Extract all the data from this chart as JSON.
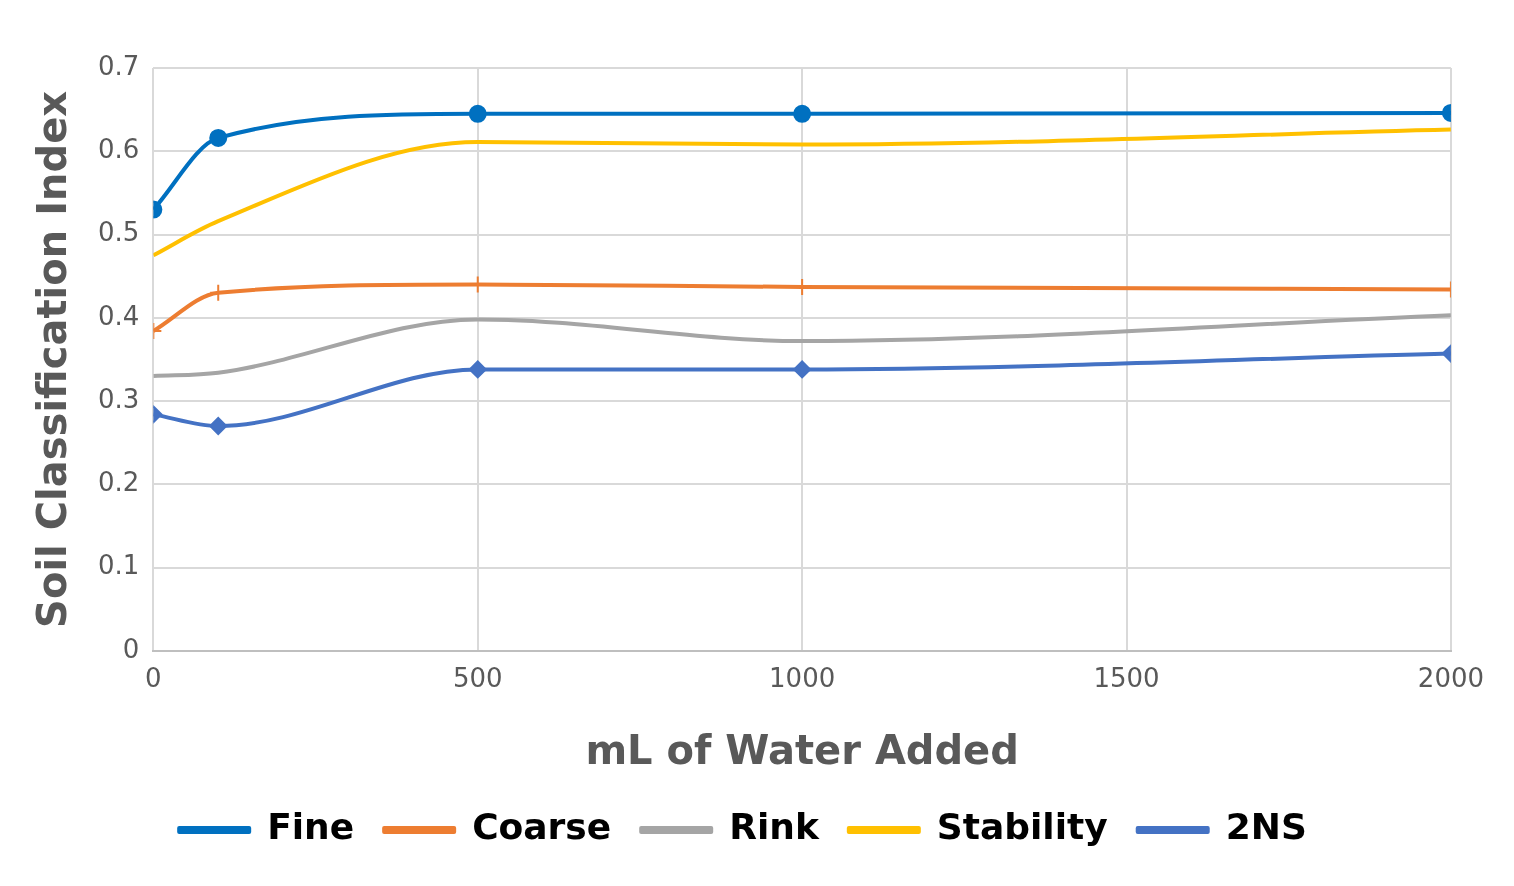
{
  "chart_data": {
    "type": "line",
    "xlabel": "mL of Water Added",
    "ylabel": "Soil Classification Index",
    "x": [
      0,
      100,
      500,
      1000,
      2000
    ],
    "xlim": [
      0,
      2000
    ],
    "xticks": [
      0,
      500,
      1000,
      1500,
      2000
    ],
    "ylim": [
      0,
      0.7
    ],
    "yticks": [
      0,
      0.1,
      0.2,
      0.3,
      0.4,
      0.5,
      0.6,
      0.7
    ],
    "grid": true,
    "legend": "bottom",
    "series": [
      {
        "name": "Fine",
        "color": "#0070c0",
        "marker": "circle",
        "values": [
          0.53,
          0.616,
          0.645,
          0.645,
          0.646
        ]
      },
      {
        "name": "Coarse",
        "color": "#ed7d31",
        "marker": "cross",
        "values": [
          0.384,
          0.43,
          0.44,
          0.437,
          0.434
        ]
      },
      {
        "name": "Rink",
        "color": "#a5a5a5",
        "marker": "none",
        "values": [
          0.33,
          0.334,
          0.398,
          0.372,
          0.403
        ]
      },
      {
        "name": "Stability",
        "color": "#ffc000",
        "marker": "none",
        "values": [
          0.475,
          0.516,
          0.611,
          0.608,
          0.626
        ]
      },
      {
        "name": "2NS",
        "color": "#4472c4",
        "marker": "diamond",
        "values": [
          0.284,
          0.27,
          0.338,
          0.338,
          0.357
        ]
      }
    ]
  }
}
